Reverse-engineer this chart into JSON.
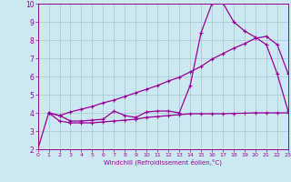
{
  "xlabel": "Windchill (Refroidissement éolien,°C)",
  "xlim": [
    0,
    23
  ],
  "ylim": [
    2,
    10
  ],
  "xticks": [
    0,
    1,
    2,
    3,
    4,
    5,
    6,
    7,
    8,
    9,
    10,
    11,
    12,
    13,
    14,
    15,
    16,
    17,
    18,
    19,
    20,
    21,
    22,
    23
  ],
  "yticks": [
    2,
    3,
    4,
    5,
    6,
    7,
    8,
    9,
    10
  ],
  "bg_color": "#cce8f0",
  "line_color": "#990099",
  "grid_color": "#a8ccd8",
  "line1_x": [
    0,
    1,
    2,
    3,
    4,
    5,
    6,
    7,
    8,
    9,
    10,
    11,
    12,
    13,
    14,
    15,
    16,
    17,
    18,
    19,
    20,
    21,
    22,
    23
  ],
  "line1_y": [
    2.0,
    4.0,
    3.85,
    3.55,
    3.55,
    3.6,
    3.65,
    4.1,
    3.85,
    3.75,
    4.05,
    4.1,
    4.1,
    4.0,
    5.5,
    8.4,
    10.0,
    10.05,
    9.0,
    8.5,
    8.15,
    7.75,
    6.15,
    4.1
  ],
  "line2_x": [
    1,
    2,
    3,
    4,
    5,
    6,
    7,
    8,
    9,
    10,
    11,
    12,
    13,
    14,
    15,
    16,
    17,
    18,
    19,
    20,
    21,
    22,
    23
  ],
  "line2_y": [
    4.0,
    3.85,
    4.05,
    4.2,
    4.35,
    4.55,
    4.7,
    4.9,
    5.1,
    5.3,
    5.5,
    5.75,
    5.95,
    6.25,
    6.55,
    6.95,
    7.25,
    7.55,
    7.8,
    8.1,
    8.2,
    7.75,
    6.15
  ],
  "line3_x": [
    1,
    2,
    3,
    4,
    5,
    6,
    7,
    8,
    9,
    10,
    11,
    12,
    13,
    14,
    15,
    16,
    17,
    18,
    19,
    20,
    21,
    22,
    23
  ],
  "line3_y": [
    4.0,
    3.55,
    3.45,
    3.45,
    3.45,
    3.5,
    3.55,
    3.6,
    3.65,
    3.75,
    3.8,
    3.85,
    3.9,
    3.95,
    3.95,
    3.95,
    3.95,
    3.97,
    3.98,
    4.0,
    4.0,
    4.0,
    4.0
  ]
}
